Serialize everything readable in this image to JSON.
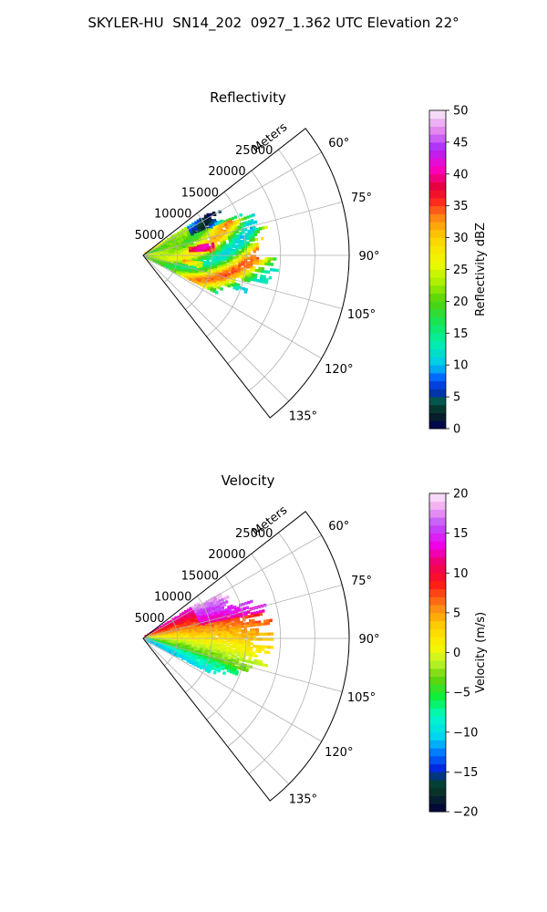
{
  "figure_title": "SKYLER-HU  SN14_202  0927_1.362 UTC Elevation 22°",
  "chart_data": [
    {
      "type": "heatmap",
      "title": "Reflectivity",
      "projection": "polar sector (PPI)",
      "radial_label": "Meters",
      "radial_ticks": [
        "5000",
        "10000",
        "15000",
        "20000",
        "25000"
      ],
      "radial_tick_values": [
        5000,
        10000,
        15000,
        20000,
        25000
      ],
      "angle_ticks": [
        "60°",
        "75°",
        "90°",
        "105°",
        "120°",
        "135°"
      ],
      "angle_tick_values": [
        60,
        75,
        90,
        105,
        120,
        135
      ],
      "azimuth_range": [
        52,
        142
      ],
      "range_max": 30000,
      "grid": true,
      "data_extent": {
        "azimuth": [
          58,
          118
        ],
        "range_max": 18000
      },
      "colorbar": {
        "label": "Reflectivity dBZ",
        "ticks": [
          "0",
          "5",
          "10",
          "15",
          "20",
          "25",
          "30",
          "35",
          "40",
          "45",
          "50"
        ],
        "tick_values": [
          0,
          5,
          10,
          15,
          20,
          25,
          30,
          35,
          40,
          45,
          50
        ],
        "range": [
          0,
          50
        ]
      }
    },
    {
      "type": "heatmap",
      "title": "Velocity",
      "projection": "polar sector (PPI)",
      "radial_label": "Meters",
      "radial_ticks": [
        "5000",
        "10000",
        "15000",
        "20000",
        "25000"
      ],
      "radial_tick_values": [
        5000,
        10000,
        15000,
        20000,
        25000
      ],
      "angle_ticks": [
        "60°",
        "75°",
        "90°",
        "105°",
        "120°",
        "135°"
      ],
      "angle_tick_values": [
        60,
        75,
        90,
        105,
        120,
        135
      ],
      "azimuth_range": [
        52,
        142
      ],
      "range_max": 30000,
      "grid": true,
      "data_extent": {
        "azimuth": [
          58,
          118
        ],
        "range_max": 18000
      },
      "colorbar": {
        "label": "Velocity (m/s)",
        "ticks": [
          "−20",
          "−15",
          "−10",
          "−5",
          "0",
          "5",
          "10",
          "15",
          "20"
        ],
        "tick_values": [
          -20,
          -15,
          -10,
          -5,
          0,
          5,
          10,
          15,
          20
        ],
        "range": [
          -20,
          20
        ]
      }
    }
  ]
}
